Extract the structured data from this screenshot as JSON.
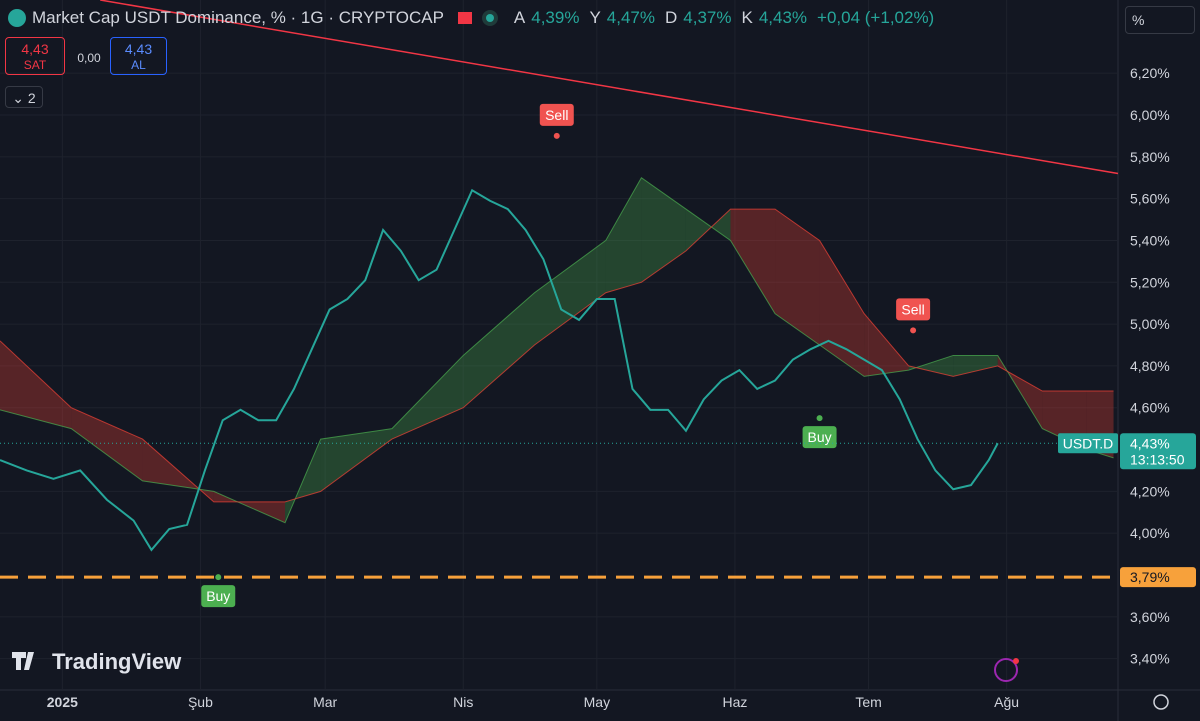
{
  "header": {
    "title": "Market Cap USDT Dominance, % · 1G · CRYPTOCAP",
    "ohlc": [
      {
        "key": "A",
        "value": "4,39%"
      },
      {
        "key": "Y",
        "value": "4,47%"
      },
      {
        "key": "D",
        "value": "4,37%"
      },
      {
        "key": "K",
        "value": "4,43%"
      }
    ],
    "change": "+0,04 (+1,02%)"
  },
  "toolbar": {
    "sell_price": "4,43",
    "sell_label": "SAT",
    "spread": "0,00",
    "buy_price": "4,43",
    "buy_label": "AL",
    "indicators": "2",
    "scale": "%"
  },
  "branding": "TradingView",
  "chart_data": {
    "type": "line",
    "xlim": [
      -14,
      237
    ],
    "ylim": [
      3.25,
      6.55
    ],
    "xticks": [
      {
        "value": 0,
        "label": "2025"
      },
      {
        "value": 31,
        "label": "Şub"
      },
      {
        "value": 59,
        "label": "Mar"
      },
      {
        "value": 90,
        "label": "Nis"
      },
      {
        "value": 120,
        "label": "May"
      },
      {
        "value": 151,
        "label": "Haz"
      },
      {
        "value": 181,
        "label": "Tem"
      },
      {
        "value": 212,
        "label": "Ağu"
      }
    ],
    "yticks": [
      {
        "value": 6.2,
        "label": "6,20%"
      },
      {
        "value": 6.0,
        "label": "6,00%"
      },
      {
        "value": 5.8,
        "label": "5,80%"
      },
      {
        "value": 5.6,
        "label": "5,60%"
      },
      {
        "value": 5.4,
        "label": "5,40%"
      },
      {
        "value": 5.2,
        "label": "5,20%"
      },
      {
        "value": 5.0,
        "label": "5,00%"
      },
      {
        "value": 4.8,
        "label": "4,80%"
      },
      {
        "value": 4.6,
        "label": "4,60%"
      },
      {
        "value": 4.2,
        "label": "4,20%"
      },
      {
        "value": 4.0,
        "label": "4,00%"
      },
      {
        "value": 3.6,
        "label": "3,60%"
      },
      {
        "value": 3.4,
        "label": "3,40%"
      }
    ],
    "grid": true,
    "x": [
      -14,
      -8,
      -2,
      4,
      10,
      16,
      20,
      24,
      28,
      32,
      36,
      40,
      44,
      48,
      52,
      56,
      60,
      64,
      68,
      72,
      76,
      80,
      84,
      88,
      92,
      96,
      100,
      104,
      108,
      112,
      116,
      120,
      124,
      128,
      132,
      136,
      140,
      144,
      148,
      152,
      156,
      160,
      164,
      168,
      172,
      176,
      180,
      184,
      188,
      192,
      196,
      200,
      204,
      208,
      210
    ],
    "series": [
      {
        "name": "USDT.D",
        "color": "#26a69a",
        "values": [
          4.35,
          4.3,
          4.26,
          4.3,
          4.16,
          4.06,
          3.92,
          4.02,
          4.04,
          4.3,
          4.54,
          4.59,
          4.54,
          4.54,
          4.69,
          4.88,
          5.07,
          5.12,
          5.21,
          5.45,
          5.35,
          5.21,
          5.26,
          5.45,
          5.64,
          5.59,
          5.55,
          5.45,
          5.31,
          5.07,
          5.02,
          5.12,
          5.12,
          4.69,
          4.59,
          4.59,
          4.49,
          4.64,
          4.73,
          4.78,
          4.69,
          4.73,
          4.83,
          4.88,
          4.92,
          4.88,
          4.83,
          4.78,
          4.64,
          4.45,
          4.3,
          4.21,
          4.23,
          4.35,
          4.43
        ]
      }
    ],
    "cloud": {
      "x": [
        -14,
        2,
        18,
        34,
        50,
        58,
        74,
        90,
        106,
        122,
        130,
        140,
        150,
        160,
        170,
        180,
        190,
        200,
        210,
        220,
        230,
        236
      ],
      "span_a": [
        4.59,
        4.5,
        4.25,
        4.2,
        4.05,
        4.45,
        4.5,
        4.85,
        5.15,
        5.4,
        5.7,
        5.55,
        5.4,
        5.05,
        4.9,
        4.75,
        4.78,
        4.85,
        4.85,
        4.5,
        4.4,
        4.36
      ],
      "span_b": [
        4.92,
        4.6,
        4.45,
        4.15,
        4.15,
        4.2,
        4.45,
        4.6,
        4.9,
        5.15,
        5.2,
        5.35,
        5.55,
        5.55,
        5.4,
        5.05,
        4.8,
        4.75,
        4.8,
        4.68,
        4.68,
        4.68
      ],
      "up_color": "#4caf50",
      "down_color": "#f44336"
    },
    "trendline": {
      "x": [
        8.5,
        237
      ],
      "values": [
        6.55,
        5.72
      ],
      "color": "#f23645"
    },
    "level": {
      "value": 3.79,
      "label": "3,79%",
      "color": "#f7a13b"
    },
    "last_price": {
      "value": 4.43,
      "label": "4,43%",
      "symbol": "USDT.D",
      "countdown": "13:13:50"
    },
    "signals": [
      {
        "x": 35,
        "value": 3.79,
        "label": "Buy"
      },
      {
        "x": 111,
        "value": 5.9,
        "label": "Sell"
      },
      {
        "x": 170,
        "value": 4.55,
        "label": "Buy"
      },
      {
        "x": 191,
        "value": 4.97,
        "label": "Sell"
      }
    ]
  }
}
